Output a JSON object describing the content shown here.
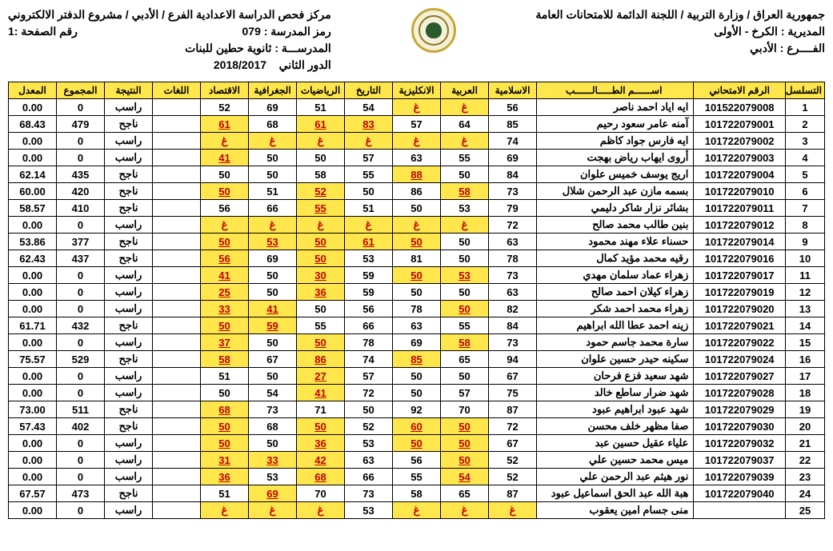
{
  "header": {
    "republic_line": "جمهورية العراق / وزارة التربية / اللجنة الدائمة للامتحانات العامة",
    "center_line": "مركز فحص الدراسة الاعدادية الفرع / الأدبي / مشروع الدفتر الالكتروني",
    "directorate_label": "المديرية :",
    "directorate_val": "الكرخ - الأولى",
    "branch_label": "الفــــرع :",
    "branch_val": "الأدبي",
    "school_code_label": "رمز المدرسة  :",
    "school_code_val": "079",
    "school_name_label": "المدرســـة   :",
    "school_name_val": "ثانوية حطين للبنات",
    "round_label": "الدور الثاني",
    "year": "2018/2017",
    "page_label": "رقم الصفحة :1"
  },
  "columns": {
    "seq": "التسلسل",
    "exam_no": "الرقم الامتحاني",
    "name": "اســــــم الطـــــالــــــب",
    "islamic": "الاسلامية",
    "arabic": "العربية",
    "english": "الانكليزية",
    "history": "التاريخ",
    "math": "الرياضيات",
    "geography": "الجغرافية",
    "economy": "الاقتصاد",
    "lang": "اللغات",
    "result": "النتيجة",
    "total": "المجموع",
    "avg": "المعدل"
  },
  "absent_glyph": "غ",
  "pass_threshold": 50,
  "style": {
    "header_bg": "#ffe64d",
    "fail_bg": "#ffe64d",
    "fail_color": "#c00000",
    "border_color": "#000000",
    "font_size_cell": 13,
    "font_size_header": 12
  },
  "rows": [
    {
      "seq": 1,
      "exam": "101522079008",
      "name": "ايه اياد احمد ناصر",
      "s": [
        56,
        "غ",
        "غ",
        54,
        51,
        69,
        52
      ],
      "lang": "",
      "res": "راسب",
      "tot": 0,
      "avg": "0.00"
    },
    {
      "seq": 2,
      "exam": "101722079001",
      "name": "آمنه عامر سعود رحيم",
      "s": [
        85,
        64,
        57,
        83,
        61,
        68,
        61
      ],
      "lang": "",
      "res": "ناجح",
      "tot": 479,
      "avg": "68.43"
    },
    {
      "seq": 3,
      "exam": "101722079002",
      "name": "ايه فارس جواد كاظم",
      "s": [
        74,
        "غ",
        "غ",
        "غ",
        "غ",
        "غ",
        "غ"
      ],
      "lang": "",
      "res": "راسب",
      "tot": 0,
      "avg": "0.00"
    },
    {
      "seq": 4,
      "exam": "101722079003",
      "name": "أروى ايهاب رياض بهجت",
      "s": [
        69,
        55,
        63,
        57,
        50,
        50,
        41
      ],
      "lang": "",
      "res": "راسب",
      "tot": 0,
      "avg": "0.00"
    },
    {
      "seq": 5,
      "exam": "101722079004",
      "name": "اريج يوسف خميس علوان",
      "s": [
        84,
        50,
        88,
        55,
        58,
        50,
        50
      ],
      "lang": "",
      "res": "ناجح",
      "tot": 435,
      "avg": "62.14"
    },
    {
      "seq": 6,
      "exam": "101722079010",
      "name": "بسمه مازن عبد الرحمن شلال",
      "s": [
        73,
        58,
        86,
        50,
        52,
        51,
        50
      ],
      "lang": "",
      "res": "ناجح",
      "tot": 420,
      "avg": "60.00"
    },
    {
      "seq": 7,
      "exam": "101722079011",
      "name": "بشائر نزار شاكر دليمي",
      "s": [
        79,
        53,
        50,
        51,
        55,
        66,
        56
      ],
      "lang": "",
      "res": "ناجح",
      "tot": 410,
      "avg": "58.57"
    },
    {
      "seq": 8,
      "exam": "101722079012",
      "name": "بنين طالب محمد صالح",
      "s": [
        72,
        "غ",
        "غ",
        "غ",
        "غ",
        "غ",
        "غ"
      ],
      "lang": "",
      "res": "راسب",
      "tot": 0,
      "avg": "0.00"
    },
    {
      "seq": 9,
      "exam": "101722079014",
      "name": "حسناء علاء مهند محمود",
      "s": [
        63,
        50,
        50,
        61,
        50,
        53,
        50
      ],
      "lang": "",
      "res": "ناجح",
      "tot": 377,
      "avg": "53.86"
    },
    {
      "seq": 10,
      "exam": "101722079016",
      "name": "رقيه محمد مؤيد كمال",
      "s": [
        78,
        50,
        81,
        53,
        50,
        69,
        56
      ],
      "lang": "",
      "res": "ناجح",
      "tot": 437,
      "avg": "62.43"
    },
    {
      "seq": 11,
      "exam": "101722079017",
      "name": "زهراء عماد سلمان مهدي",
      "s": [
        73,
        53,
        50,
        59,
        30,
        50,
        41
      ],
      "lang": "",
      "res": "راسب",
      "tot": 0,
      "avg": "0.00"
    },
    {
      "seq": 12,
      "exam": "101722079019",
      "name": "زهراء كيلان احمد صالح",
      "s": [
        63,
        50,
        50,
        59,
        36,
        50,
        25
      ],
      "lang": "",
      "res": "راسب",
      "tot": 0,
      "avg": "0.00"
    },
    {
      "seq": 13,
      "exam": "101722079020",
      "name": "زهراء محمد احمد شكر",
      "s": [
        82,
        50,
        78,
        56,
        50,
        41,
        33
      ],
      "lang": "",
      "res": "راسب",
      "tot": 0,
      "avg": "0.00"
    },
    {
      "seq": 14,
      "exam": "101722079021",
      "name": "زينه احمد عطا الله ابراهيم",
      "s": [
        84,
        55,
        63,
        66,
        55,
        59,
        50
      ],
      "lang": "",
      "res": "ناجح",
      "tot": 432,
      "avg": "61.71"
    },
    {
      "seq": 15,
      "exam": "101722079022",
      "name": "سارة محمد جاسم حمود",
      "s": [
        73,
        58,
        69,
        78,
        50,
        50,
        37
      ],
      "lang": "",
      "res": "راسب",
      "tot": 0,
      "avg": "0.00"
    },
    {
      "seq": 16,
      "exam": "101722079024",
      "name": "سكينه حيدر حسين علوان",
      "s": [
        94,
        65,
        85,
        74,
        86,
        67,
        58
      ],
      "lang": "",
      "res": "ناجح",
      "tot": 529,
      "avg": "75.57"
    },
    {
      "seq": 17,
      "exam": "101722079027",
      "name": "شهد سعيد فزع فرحان",
      "s": [
        67,
        50,
        50,
        57,
        27,
        50,
        51
      ],
      "lang": "",
      "res": "راسب",
      "tot": 0,
      "avg": "0.00"
    },
    {
      "seq": 18,
      "exam": "101722079028",
      "name": "شهد ضرار ساطع خالد",
      "s": [
        75,
        57,
        50,
        72,
        41,
        54,
        50
      ],
      "lang": "",
      "res": "راسب",
      "tot": 0,
      "avg": "0.00"
    },
    {
      "seq": 19,
      "exam": "101722079029",
      "name": "شهد عبود ابراهيم عبود",
      "s": [
        87,
        70,
        92,
        50,
        71,
        73,
        68
      ],
      "lang": "",
      "res": "ناجح",
      "tot": 511,
      "avg": "73.00"
    },
    {
      "seq": 20,
      "exam": "101722079030",
      "name": "صفا مظهر خلف محسن",
      "s": [
        72,
        50,
        60,
        52,
        50,
        68,
        50
      ],
      "lang": "",
      "res": "ناجح",
      "tot": 402,
      "avg": "57.43"
    },
    {
      "seq": 21,
      "exam": "101722079032",
      "name": "علياء عقيل حسين عبد",
      "s": [
        67,
        50,
        50,
        53,
        36,
        50,
        50
      ],
      "lang": "",
      "res": "راسب",
      "tot": 0,
      "avg": "0.00"
    },
    {
      "seq": 22,
      "exam": "101722079037",
      "name": "ميس محمد حسين علي",
      "s": [
        52,
        50,
        56,
        63,
        42,
        33,
        31
      ],
      "lang": "",
      "res": "راسب",
      "tot": 0,
      "avg": "0.00"
    },
    {
      "seq": 23,
      "exam": "101722079039",
      "name": "نور هيثم عبد الرحمن علي",
      "s": [
        52,
        54,
        55,
        66,
        68,
        53,
        36
      ],
      "lang": "",
      "res": "راسب",
      "tot": 0,
      "avg": "0.00"
    },
    {
      "seq": 24,
      "exam": "101722079040",
      "name": "هبة الله عبد الحق اسماعيل عبود",
      "s": [
        87,
        65,
        58,
        73,
        70,
        69,
        51
      ],
      "lang": "",
      "res": "ناجح",
      "tot": 473,
      "avg": "67.57"
    },
    {
      "seq": 25,
      "exam": "",
      "name": "منى جسام امين يعقوب",
      "s": [
        "غ",
        "غ",
        "غ",
        53,
        "غ",
        "غ",
        "غ"
      ],
      "lang": "",
      "res": "راسب",
      "tot": 0,
      "avg": "0.00"
    }
  ]
}
